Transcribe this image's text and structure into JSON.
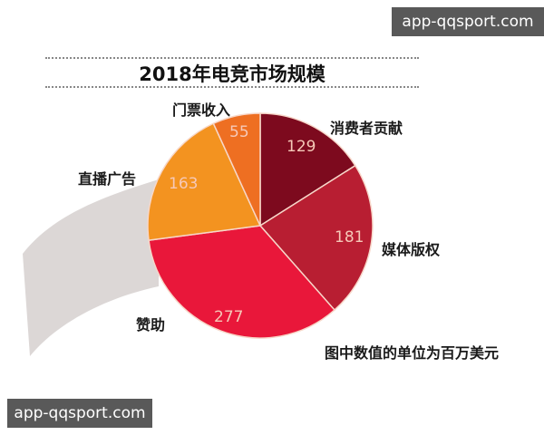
{
  "watermarks": {
    "top": "app-qqsport.com",
    "bottom": "app-qqsport.com"
  },
  "colors": {
    "消费者贡献": "#7d0a1e",
    "媒体版权": "#b81e32",
    "赞助": "#e9173a",
    "直播广告": "#f39320",
    "门票收入": "#ee6f22",
    "band": "#dcd7d6"
  },
  "chart_data": {
    "type": "pie",
    "title": "2018年电竞市场规模",
    "categories": [
      "消费者贡献",
      "媒体版权",
      "赞助",
      "直播广告",
      "门票收入"
    ],
    "values": [
      129,
      181,
      277,
      163,
      55
    ],
    "unit_note": "图中数值的单位为百万美元",
    "start_angle": "12 o'clock",
    "direction": "clockwise"
  },
  "labels": {
    "s0_name": "消费者贡献",
    "s0_value": "129",
    "s1_name": "媒体版权",
    "s1_value": "181",
    "s2_name": "赞助",
    "s2_value": "277",
    "s3_name": "直播广告",
    "s3_value": "163",
    "s4_name": "门票收入",
    "s4_value": "55",
    "note": "图中数值的单位为百万美元"
  }
}
